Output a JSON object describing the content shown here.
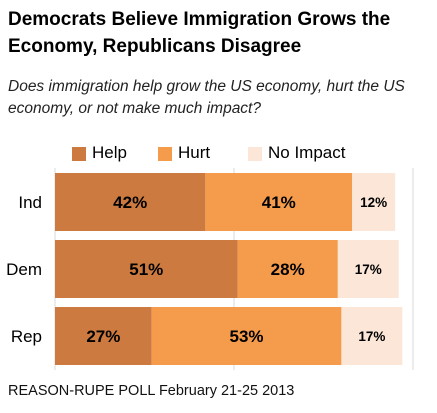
{
  "title": "Democrats Believe Immigration Grows the Economy, Republicans Disagree",
  "subtitle": "Does immigration help grow the US economy, hurt the US economy, or not make much impact?",
  "source": "REASON-RUPE POLL February 21-25 2013",
  "colors": {
    "help": "#cc7a3f",
    "hurt": "#f59b4c",
    "no_impact": "#fbe6d8",
    "gridline": "#d8d8d8"
  },
  "chart_data": {
    "type": "bar",
    "orientation": "horizontal",
    "stacked": true,
    "categories": [
      "Ind",
      "Dem",
      "Rep"
    ],
    "series": [
      {
        "name": "Help",
        "values": [
          42,
          51,
          27
        ],
        "labels": [
          "42%",
          "51%",
          "27%"
        ]
      },
      {
        "name": "Hurt",
        "values": [
          41,
          28,
          53
        ],
        "labels": [
          "41%",
          "28%",
          "53%"
        ]
      },
      {
        "name": "No Impact",
        "values": [
          12,
          17,
          17
        ],
        "labels": [
          "12%",
          "17%",
          "17%"
        ]
      }
    ],
    "xlim": [
      0,
      100
    ],
    "legend": "top",
    "grid": true
  }
}
